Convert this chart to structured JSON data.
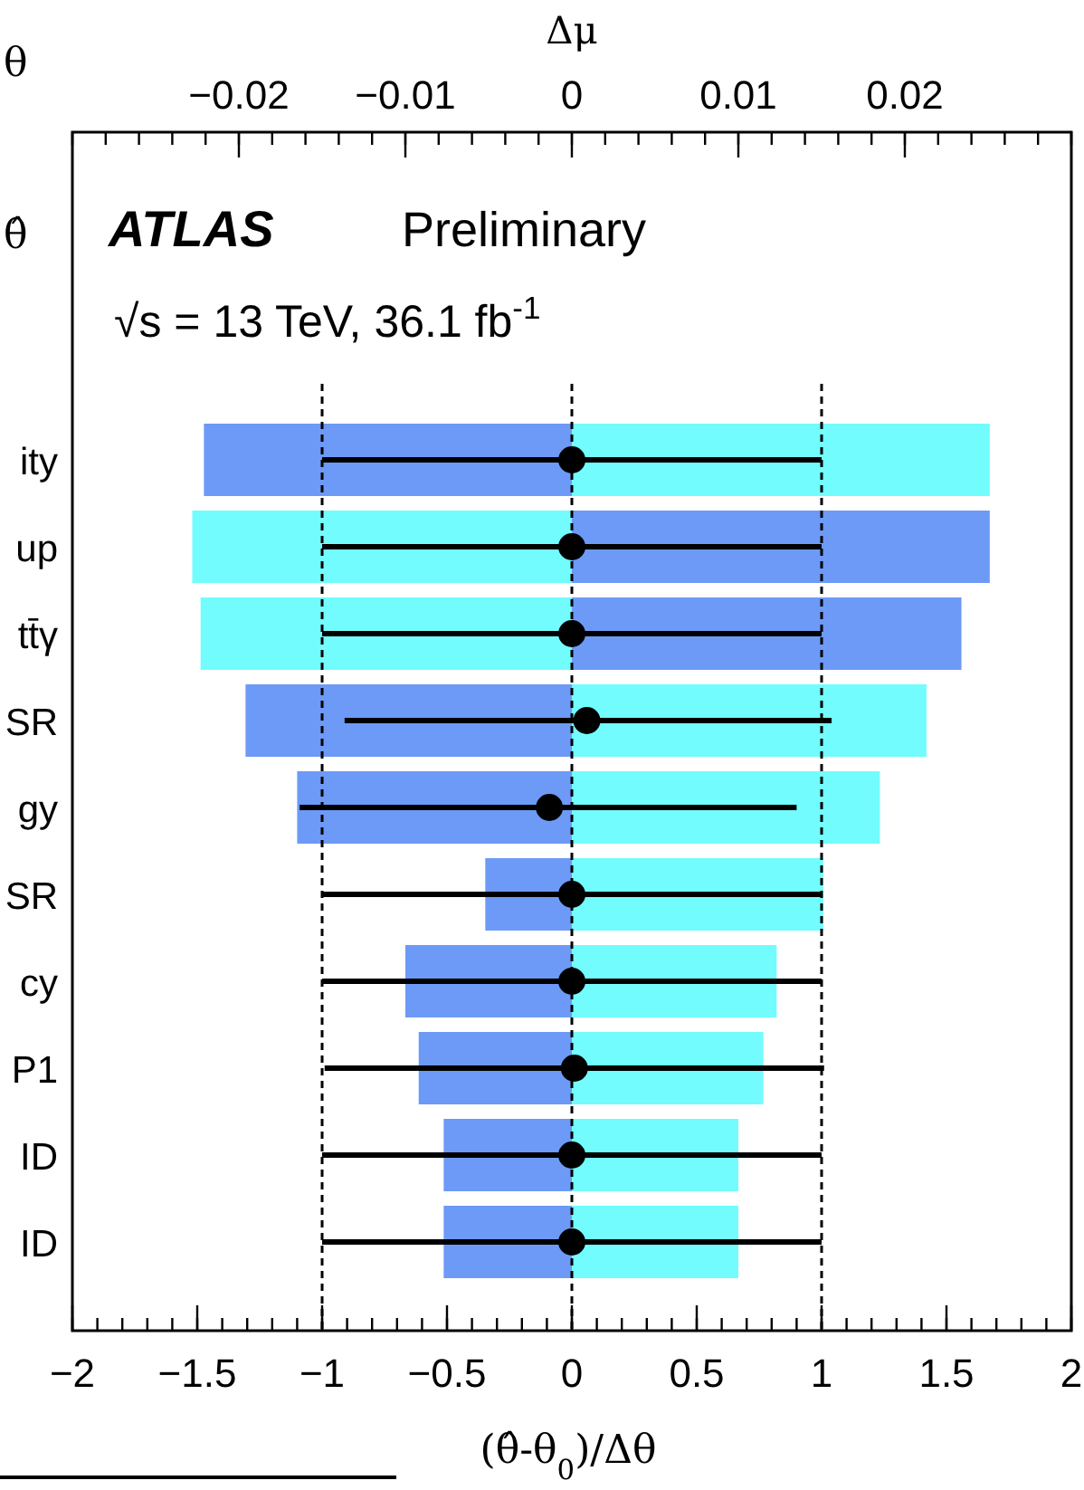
{
  "chart_data": {
    "type": "bar",
    "orientation": "horizontal",
    "stacked": true,
    "categories": [
      "ity",
      "up",
      "tt̄γ",
      "SR",
      "gy",
      "SR",
      "cy",
      "P1",
      "ID",
      "ID"
    ],
    "xlabel": "(θ̂-θ$_{0}$)/Δθ",
    "x2label": "Δμ",
    "xlim": [
      -2,
      2
    ],
    "xticks": [
      -2,
      -1.5,
      -1,
      -0.5,
      0,
      0.5,
      1,
      1.5,
      2
    ],
    "x2lim": [
      -0.03,
      0.03
    ],
    "x2ticks": [
      -0.02,
      -0.01,
      0,
      0.01,
      0.02
    ],
    "annotations": [
      "ATLAS",
      "Preliminary",
      "√s = 13 TeV, 36.1  fb$^{-1}$",
      "θ",
      "θ̂"
    ],
    "ref_lines": [
      {
        "axis": "x",
        "value": -1,
        "color": "#000000",
        "line_style": "dashed"
      },
      {
        "axis": "x",
        "value": 0,
        "color": "#000000",
        "line_style": "dashed"
      },
      {
        "axis": "x",
        "value": 1,
        "color": "#000000",
        "line_style": "dashed"
      }
    ],
    "series": [
      {
        "axis": "x2",
        "color": "#72fcfd",
        "values": [
          0.0251,
          -0.0228,
          -0.0223,
          0.0213,
          0.0185,
          0.0151,
          0.0123,
          0.0115,
          0.01,
          0.01
        ]
      },
      {
        "axis": "x2",
        "color": "#6d9af6",
        "values": [
          -0.0221,
          0.0251,
          0.0234,
          -0.0196,
          -0.0165,
          -0.0052,
          -0.01,
          -0.0092,
          -0.0077,
          -0.0077
        ]
      },
      {
        "type": "scatter",
        "color": "#000000",
        "marker": "circle",
        "values": [
          0,
          0,
          0,
          0.06,
          -0.09,
          0,
          0,
          0.01,
          0,
          0
        ],
        "errors": [
          1,
          1,
          1,
          [
            -0.91,
            1.04
          ],
          [
            -1.09,
            0.9
          ],
          1,
          1,
          1,
          1,
          1
        ]
      }
    ]
  }
}
